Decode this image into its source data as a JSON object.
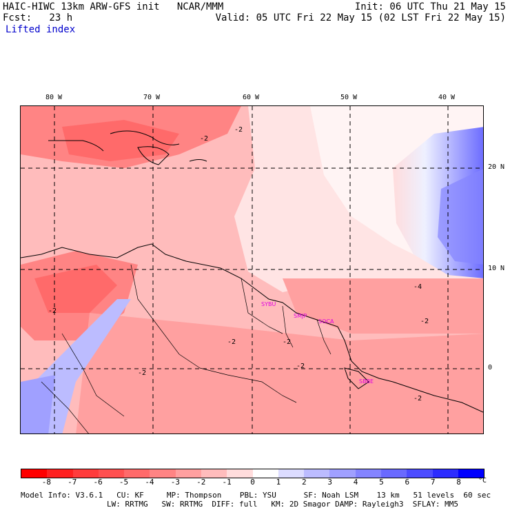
{
  "header": {
    "line1_left": "HAIC-HIWC 13km ARW-GFS init   NCAR/MMM",
    "line1_right": "Init: 06 UTC Thu 21 May 15",
    "line2_left": "Fcst:   23 h",
    "line2_right": "Valid: 05 UTC Fri 22 May 15 (02 LST Fri 22 May 15)",
    "field": "Lifted index"
  },
  "longitude_labels": [
    "80 W",
    "70 W",
    "60 W",
    "50 W",
    "40 W"
  ],
  "latitude_labels": [
    "20 N",
    "10 N",
    "0"
  ],
  "map": {
    "contour_labels": [
      "-2",
      "-2",
      "-4",
      "-2",
      "-2",
      "-2",
      "-2",
      "-2",
      "-2",
      "-2"
    ],
    "stations": [
      "SYBU",
      "SMJP",
      "SOCA",
      "SBBE"
    ]
  },
  "legend": {
    "ticks": [
      "-8",
      "-7",
      "-6",
      "-5",
      "-4",
      "-3",
      "-2",
      "-1",
      "0",
      "1",
      "2",
      "3",
      "4",
      "5",
      "6",
      "7",
      "8"
    ],
    "unit": "°C",
    "colors": [
      "#ff0000",
      "#ff2020",
      "#ff3c3c",
      "#ff5050",
      "#ff6a6a",
      "#ff8484",
      "#ffa0a0",
      "#ffbcbc",
      "#ffdcdc",
      "#ffffff",
      "#dcdcff",
      "#bcbcff",
      "#a0a0ff",
      "#8484ff",
      "#6a6aff",
      "#4c4cff",
      "#2c2cff",
      "#0000ff"
    ]
  },
  "footer": {
    "line1": "Model Info: V3.6.1   CU: KF     MP: Thompson    PBL: YSU      SF: Noah LSM    13 km   51 levels  60 sec",
    "line2": "LW: RRTMG   SW: RRTMG  DIFF: full   KM: 2D Smagor DAMP: Rayleigh3  SFLAY: MM5"
  }
}
